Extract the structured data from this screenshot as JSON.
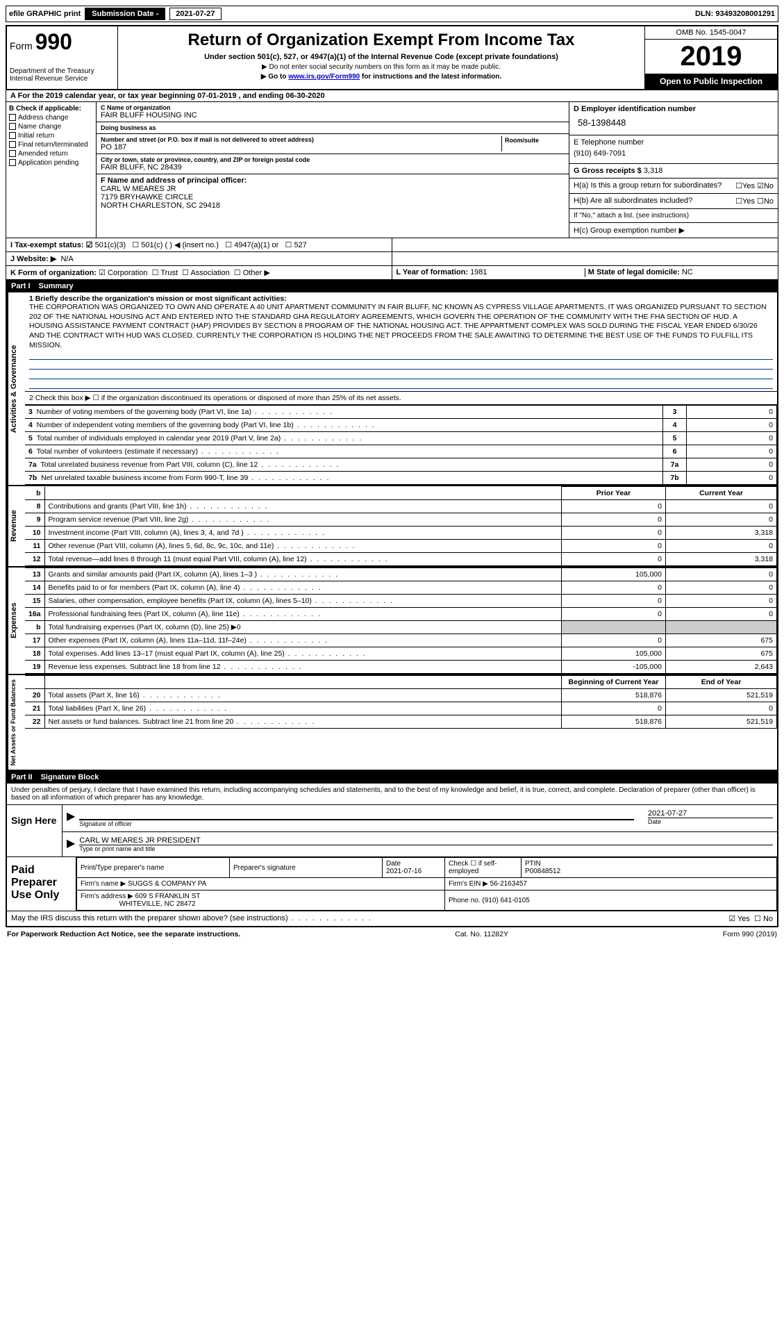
{
  "topbar": {
    "efile": "efile GRAPHIC print",
    "subdate_lbl": "Submission Date - ",
    "subdate": "2021-07-27",
    "dln": "DLN: 93493208001291"
  },
  "header": {
    "form": "Form",
    "form_num": "990",
    "dept": "Department of the Treasury\nInternal Revenue Service",
    "title": "Return of Organization Exempt From Income Tax",
    "subtitle": "Under section 501(c), 527, or 4947(a)(1) of the Internal Revenue Code (except private foundations)",
    "note1": "▶ Do not enter social security numbers on this form as it may be made public.",
    "note2a": "▶ Go to ",
    "note2link": "www.irs.gov/Form990",
    "note2b": " for instructions and the latest information.",
    "omb": "OMB No. 1545-0047",
    "year": "2019",
    "open": "Open to Public Inspection"
  },
  "cal": "A For the 2019 calendar year, or tax year beginning 07-01-2019    , and ending 06-30-2020",
  "checks": {
    "hdr": "B Check if applicable:",
    "c1": "Address change",
    "c2": "Name change",
    "c3": "Initial return",
    "c4": "Final return/terminated",
    "c5": "Amended return",
    "c6": "Application pending"
  },
  "org": {
    "c_lbl": "C Name of organization",
    "name": "FAIR BLUFF HOUSING INC",
    "dba_lbl": "Doing business as",
    "dba": "",
    "addr_lbl": "Number and street (or P.O. box if mail is not delivered to street address)",
    "room_lbl": "Room/suite",
    "addr": "PO 187",
    "city_lbl": "City or town, state or province, country, and ZIP or foreign postal code",
    "city": "FAIR BLUFF, NC  28439",
    "f_lbl": "F  Name and address of principal officer:",
    "f_name": "CARL W MEARES JR",
    "f_addr1": "7179 BRYHAWKE CIRCLE",
    "f_addr2": "NORTH CHARLESTON, SC  29418"
  },
  "rightinfo": {
    "d_lbl": "D Employer identification number",
    "ein": "58-1398448",
    "e_lbl": "E Telephone number",
    "phone": "(910) 649-7091",
    "g_lbl": "G Gross receipts $ ",
    "g_val": "3,318",
    "ha": "H(a)  Is this a group return for subordinates?",
    "ha_yes": "Yes",
    "ha_no": "No",
    "hb": "H(b)  Are all subordinates included?",
    "hb_note": "If \"No,\" attach a list. (see instructions)",
    "hc": "H(c)  Group exemption number ▶"
  },
  "tax": {
    "i_lbl": "I   Tax-exempt status:",
    "o1": "501(c)(3)",
    "o2": "501(c) (  ) ◀ (insert no.)",
    "o3": "4947(a)(1) or",
    "o4": "527"
  },
  "website": {
    "lbl": "J   Website: ▶",
    "val": "N/A"
  },
  "kline": {
    "k": "K Form of organization:",
    "k1": "Corporation",
    "k2": "Trust",
    "k3": "Association",
    "k4": "Other ▶",
    "l": "L Year of formation: ",
    "l_val": "1981",
    "m": "M State of legal domicile: ",
    "m_val": "NC"
  },
  "part1": {
    "label": "Part I",
    "title": "Summary"
  },
  "summary": {
    "q1": "1   Briefly describe the organization's mission or most significant activities:",
    "mission": "THE CORPORATION WAS ORGANIZED TO OWN AND OPERATE A 40 UNIT APARTMENT COMMUNITY IN FAIR BLUFF, NC KNOWN AS CYPRESS VILLAGE APARTMENTS. IT WAS ORGANIZED PURSUANT TO SECTION 202 OF THE NATIONAL HOUSING ACT AND ENTERED INTO THE STANDARD GHA REGULATORY AGREEMENTS, WHICH GOVERN THE OPERATION OF THE COMMUNITY WITH THE FHA SECTION OF HUD. A HOUSING ASSISTANCE PAYMENT CONTRACT (HAP) PROVIDES BY SECTION 8 PROGRAM OF THE NATIONAL HOUSING ACT. THE APPARTMENT COMPLEX WAS SOLD DURING THE FISCAL YEAR ENDED 6/30/26 AND THE CONTRACT WITH HUD WAS CLOSED. CURRENTLY THE CORPORATION IS HOLDING THE NET PROCEEDS FROM THE SALE AWAITING TO DETERMINE THE BEST USE OF THE FUNDS TO FULFILL ITS MISSION.",
    "q2": "2   Check this box ▶ ☐ if the organization discontinued its operations or disposed of more than 25% of its net assets.",
    "rows": [
      {
        "n": "3",
        "t": "Number of voting members of the governing body (Part VI, line 1a)",
        "v": "0"
      },
      {
        "n": "4",
        "t": "Number of independent voting members of the governing body (Part VI, line 1b)",
        "v": "0"
      },
      {
        "n": "5",
        "t": "Total number of individuals employed in calendar year 2019 (Part V, line 2a)",
        "v": "0"
      },
      {
        "n": "6",
        "t": "Total number of volunteers (estimate if necessary)",
        "v": "0"
      },
      {
        "n": "7a",
        "t": "Total unrelated business revenue from Part VIII, column (C), line 12",
        "v": "0"
      },
      {
        "n": "7b",
        "t": "Net unrelated taxable business income from Form 990-T, line 39",
        "v": "0"
      }
    ]
  },
  "rev_hdr": {
    "py": "Prior Year",
    "cy": "Current Year"
  },
  "revenue": {
    "label": "Revenue",
    "rows": [
      {
        "n": "8",
        "t": "Contributions and grants (Part VIII, line 1h)",
        "py": "0",
        "cy": "0"
      },
      {
        "n": "9",
        "t": "Program service revenue (Part VIII, line 2g)",
        "py": "0",
        "cy": "0"
      },
      {
        "n": "10",
        "t": "Investment income (Part VIII, column (A), lines 3, 4, and 7d )",
        "py": "0",
        "cy": "3,318"
      },
      {
        "n": "11",
        "t": "Other revenue (Part VIII, column (A), lines 5, 6d, 8c, 9c, 10c, and 11e)",
        "py": "0",
        "cy": "0"
      },
      {
        "n": "12",
        "t": "Total revenue—add lines 8 through 11 (must equal Part VIII, column (A), line 12)",
        "py": "0",
        "cy": "3,318"
      }
    ]
  },
  "expenses": {
    "label": "Expenses",
    "rows": [
      {
        "n": "13",
        "t": "Grants and similar amounts paid (Part IX, column (A), lines 1–3 )",
        "py": "105,000",
        "cy": "0"
      },
      {
        "n": "14",
        "t": "Benefits paid to or for members (Part IX, column (A), line 4)",
        "py": "0",
        "cy": "0"
      },
      {
        "n": "15",
        "t": "Salaries, other compensation, employee benefits (Part IX, column (A), lines 5–10)",
        "py": "0",
        "cy": "0"
      },
      {
        "n": "16a",
        "t": "Professional fundraising fees (Part IX, column (A), line 11e)",
        "py": "0",
        "cy": "0"
      },
      {
        "n": "b",
        "t": "Total fundraising expenses (Part IX, column (D), line 25) ▶0",
        "py": "",
        "cy": "",
        "shade": true
      },
      {
        "n": "17",
        "t": "Other expenses (Part IX, column (A), lines 11a–11d, 11f–24e)",
        "py": "0",
        "cy": "675"
      },
      {
        "n": "18",
        "t": "Total expenses. Add lines 13–17 (must equal Part IX, column (A), line 25)",
        "py": "105,000",
        "cy": "675"
      },
      {
        "n": "19",
        "t": "Revenue less expenses. Subtract line 18 from line 12",
        "py": "-105,000",
        "cy": "2,643"
      }
    ]
  },
  "netassets": {
    "label": "Net Assets or Fund Balances",
    "hdr_py": "Beginning of Current Year",
    "hdr_cy": "End of Year",
    "rows": [
      {
        "n": "20",
        "t": "Total assets (Part X, line 16)",
        "py": "518,876",
        "cy": "521,519"
      },
      {
        "n": "21",
        "t": "Total liabilities (Part X, line 26)",
        "py": "0",
        "cy": "0"
      },
      {
        "n": "22",
        "t": "Net assets or fund balances. Subtract line 21 from line 20",
        "py": "518,876",
        "cy": "521,519"
      }
    ]
  },
  "part2": {
    "label": "Part II",
    "title": "Signature Block"
  },
  "sig": {
    "intro": "Under penalties of perjury, I declare that I have examined this return, including accompanying schedules and statements, and to the best of my knowledge and belief, it is true, correct, and complete. Declaration of preparer (other than officer) is based on all information of which preparer has any knowledge.",
    "sign_here": "Sign Here",
    "sig_of": "Signature of officer",
    "date_lbl": "Date",
    "date": "2021-07-27",
    "name": "CARL W MEARES JR  PRESIDENT",
    "name_sub": "Type or print name and title",
    "paid": "Paid Preparer Use Only",
    "pp_name_lbl": "Print/Type preparer's name",
    "pp_sig_lbl": "Preparer's signature",
    "pp_date_lbl": "Date",
    "pp_date": "2021-07-16",
    "pp_check": "Check ☐ if self-employed",
    "ptin_lbl": "PTIN",
    "ptin": "P00848512",
    "firm_name_lbl": "Firm's name   ▶",
    "firm_name": "SUGGS & COMPANY PA",
    "firm_ein_lbl": "Firm's EIN ▶",
    "firm_ein": "56-2163457",
    "firm_addr_lbl": "Firm's address ▶",
    "firm_addr": "609 S FRANKLIN ST",
    "firm_city": "WHITEVILLE, NC  28472",
    "phone_lbl": "Phone no. ",
    "phone": "(910) 641-0105",
    "discuss": "May the IRS discuss this return with the preparer shown above? (see instructions)",
    "yes": "Yes",
    "no": "No"
  },
  "footer": {
    "l": "For Paperwork Reduction Act Notice, see the separate instructions.",
    "m": "Cat. No. 11282Y",
    "r": "Form 990 (2019)"
  },
  "vert": {
    "gov": "Activities & Governance"
  }
}
